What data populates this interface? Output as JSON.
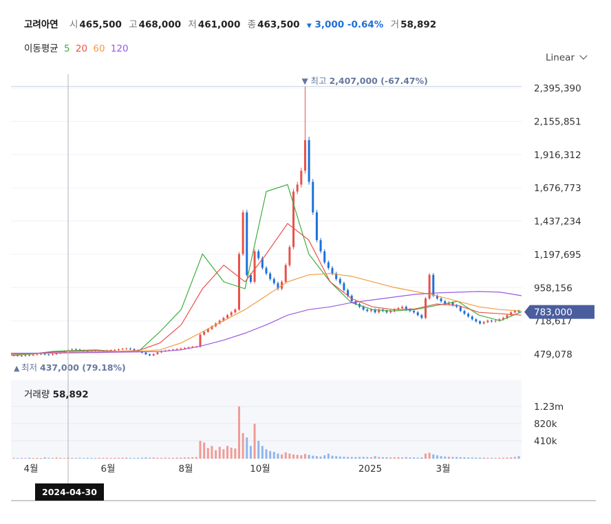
{
  "header": {
    "name": "고려아연",
    "open_label": "시",
    "open": "465,500",
    "high_label": "고",
    "high": "468,000",
    "low_label": "저",
    "low": "461,000",
    "close_label": "종",
    "close": "463,500",
    "change_arrow": "▼",
    "change": "3,000",
    "change_pct": "-0.64%",
    "volume_label": "거",
    "volume": "58,892"
  },
  "moving_avg": {
    "label": "이동평균",
    "periods": [
      {
        "period": "5",
        "color": "#3cae3c"
      },
      {
        "period": "20",
        "color": "#e8514a"
      },
      {
        "period": "60",
        "color": "#f39a3d"
      },
      {
        "period": "120",
        "color": "#9b59e0"
      }
    ]
  },
  "scale_select": "Linear",
  "volume_panel": {
    "label": "거래량",
    "value": "58,892"
  },
  "crosshair_date": "2024-04-30",
  "current_price": "783,000",
  "colors": {
    "up": "#e8514a",
    "down": "#1e6fd9",
    "label": "#6677a0",
    "price_tag": "#4a5e9e"
  },
  "chart_data": {
    "type": "candlestick",
    "y_ticks": [
      "2,395,390",
      "2,155,851",
      "1,916,312",
      "1,676,773",
      "1,437,234",
      "1,197,695",
      "958,156",
      "718,617",
      "479,078"
    ],
    "x_ticks": [
      "4월",
      "6월",
      "8월",
      "10월",
      "2025",
      "3월"
    ],
    "volume_ticks": [
      "1.23m",
      "820k",
      "410k"
    ],
    "high_marker": {
      "prefix": "최고",
      "value": "2,407,000 (-67.47%)"
    },
    "low_marker": {
      "prefix": "최저",
      "value": "437,000 (79.18%)"
    },
    "closes": [
      470000,
      468000,
      466000,
      472000,
      470000,
      476000,
      478000,
      481000,
      476000,
      474000,
      479000,
      485000,
      492000,
      502000,
      510000,
      515000,
      512000,
      506000,
      500000,
      498000,
      496000,
      494000,
      497000,
      502000,
      505000,
      508000,
      510000,
      514000,
      518000,
      520000,
      515000,
      508000,
      500000,
      490000,
      478000,
      470000,
      480000,
      492000,
      500000,
      505000,
      508000,
      512000,
      516000,
      520000,
      524000,
      528000,
      532000,
      532000,
      620000,
      640000,
      660000,
      680000,
      700000,
      720000,
      740000,
      760000,
      780000,
      800000,
      1200000,
      1500000,
      1050000,
      1000000,
      1220000,
      1170000,
      1100000,
      1060000,
      1020000,
      990000,
      950000,
      1000000,
      1120000,
      1250000,
      1650000,
      1700000,
      1800000,
      2020000,
      1720000,
      1500000,
      1300000,
      1220000,
      1140000,
      1100000,
      1060000,
      1020000,
      990000,
      940000,
      900000,
      860000,
      840000,
      820000,
      800000,
      790000,
      800000,
      780000,
      800000,
      790000,
      780000,
      790000,
      800000,
      810000,
      820000,
      800000,
      790000,
      780000,
      760000,
      740000,
      880000,
      1050000,
      900000,
      880000,
      860000,
      840000,
      850000,
      830000,
      820000,
      790000,
      770000,
      750000,
      730000,
      715000,
      700000,
      710000,
      720000,
      715000,
      720000,
      730000,
      740000,
      760000,
      780000,
      790000,
      783000
    ],
    "ma_series": [
      {
        "name": "5",
        "values": [
          470000,
          480000,
          500000,
          505000,
          510000,
          498000,
          500000,
          640000,
          800000,
          1200000,
          1000000,
          950000,
          1650000,
          1700000,
          1200000,
          1000000,
          850000,
          800000,
          790000,
          800000,
          830000,
          860000,
          760000,
          720000,
          783000
        ]
      },
      {
        "name": "20",
        "values": [
          478000,
          482000,
          495000,
          500000,
          505000,
          500000,
          505000,
          560000,
          690000,
          950000,
          1120000,
          1000000,
          1200000,
          1420000,
          1300000,
          1000000,
          880000,
          820000,
          800000,
          805000,
          840000,
          830000,
          780000,
          770000,
          760000
        ]
      },
      {
        "name": "60",
        "values": [
          482000,
          484000,
          488000,
          492000,
          496000,
          498000,
          500000,
          510000,
          560000,
          640000,
          720000,
          800000,
          900000,
          1000000,
          1050000,
          1060000,
          1040000,
          1000000,
          960000,
          930000,
          900000,
          860000,
          820000,
          800000,
          790000
        ]
      },
      {
        "name": "120",
        "values": [
          486000,
          486000,
          487000,
          489000,
          491000,
          493000,
          495000,
          498000,
          510000,
          540000,
          580000,
          630000,
          690000,
          760000,
          800000,
          820000,
          850000,
          870000,
          890000,
          910000,
          920000,
          925000,
          930000,
          925000,
          900000
        ]
      }
    ],
    "volumes": [
      20000,
      15000,
      18000,
      12000,
      25000,
      14000,
      20000,
      16000,
      30000,
      22000,
      18000,
      28000,
      20000,
      16000,
      24000,
      19000,
      17000,
      22000,
      15000,
      21000,
      18000,
      16000,
      23000,
      20000,
      19000,
      17000,
      22000,
      21000,
      24000,
      26000,
      20000,
      18000,
      22000,
      25000,
      30000,
      24000,
      28000,
      22000,
      20000,
      24000,
      22000,
      20000,
      26000,
      24000,
      28000,
      30000,
      34000,
      38000,
      420000,
      380000,
      250000,
      300000,
      200000,
      280000,
      220000,
      300000,
      260000,
      240000,
      1230000,
      600000,
      500000,
      300000,
      820000,
      420000,
      300000,
      220000,
      180000,
      160000,
      120000,
      100000,
      150000,
      120000,
      100000,
      90000,
      80000,
      110000,
      90000,
      70000,
      60000,
      50000,
      80000,
      120000,
      70000,
      60000,
      50000,
      45000,
      40000,
      38000,
      36000,
      40000,
      42000,
      38000,
      35000,
      60000,
      40000,
      35000,
      33000,
      30000,
      32000,
      35000,
      30000,
      36000,
      30000,
      28000,
      25000,
      30000,
      120000,
      140000,
      100000,
      80000,
      60000,
      50000,
      45000,
      40000,
      38000,
      35000,
      33000,
      30000,
      28000,
      26000,
      25000,
      24000,
      22000,
      20000,
      20000,
      22000,
      24000,
      26000,
      30000,
      40000,
      58892
    ]
  }
}
